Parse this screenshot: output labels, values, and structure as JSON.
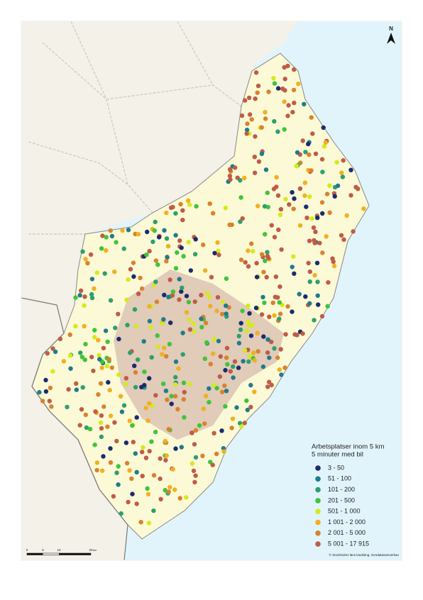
{
  "north": "N",
  "legend": {
    "title": [
      "Arbetsplatser inom 5 km",
      "5 minuter med bil"
    ],
    "items": [
      {
        "label": "3 - 50",
        "color": "#1b2b6e"
      },
      {
        "label": "51 - 100",
        "color": "#1f7b8e"
      },
      {
        "label": "101 - 200",
        "color": "#2f9f6c"
      },
      {
        "label": "201 - 500",
        "color": "#3fc43a"
      },
      {
        "label": "501 - 1 000",
        "color": "#d4ea1c"
      },
      {
        "label": "1 001 - 2 000",
        "color": "#f0b020"
      },
      {
        "label": "2 001 - 5 000",
        "color": "#d8822f"
      },
      {
        "label": "5 001 - 17 915",
        "color": "#bf5c48"
      }
    ]
  },
  "scale": {
    "labels": [
      "0",
      "5",
      "10",
      "20"
    ],
    "unit": "km"
  },
  "credit": "© Stockholms läns landsting, Geodatasamverkan"
}
